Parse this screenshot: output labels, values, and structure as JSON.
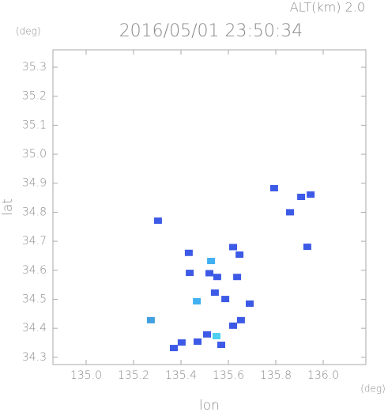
{
  "chart_data": {
    "type": "scatter",
    "title": "2016/05/01 23:50:34",
    "subtitle": "ALT(km) 2.0",
    "y_unit": "(deg)",
    "x_unit": "(deg)",
    "xlabel": "lon",
    "ylabel": "lat",
    "x": [
      135.303,
      135.793,
      135.907,
      135.947,
      135.86,
      135.933,
      135.433,
      135.527,
      135.62,
      135.647,
      135.437,
      135.553,
      135.637,
      135.543,
      135.587,
      135.467,
      135.69,
      135.273,
      135.653,
      135.62,
      135.55,
      135.47,
      135.403,
      135.37,
      135.51,
      135.57,
      135.52
    ],
    "y": [
      34.771,
      34.883,
      34.853,
      34.861,
      34.8,
      34.681,
      34.66,
      34.632,
      34.68,
      34.654,
      34.591,
      34.577,
      34.577,
      34.523,
      34.501,
      34.493,
      34.485,
      34.428,
      34.428,
      34.409,
      34.373,
      34.354,
      34.351,
      34.332,
      34.379,
      34.343,
      34.59
    ],
    "colors": [
      "#3c5ae6",
      "#3c5ae6",
      "#3c5ae6",
      "#3c5ae6",
      "#3c5ae6",
      "#3c5ae6",
      "#3c5ae6",
      "#40b0f0",
      "#3c5ae6",
      "#3c5ae6",
      "#3c5ae6",
      "#3c5ae6",
      "#3c5ae6",
      "#3c5ae6",
      "#3c5ae6",
      "#40b0f0",
      "#3c5ae6",
      "#40a0e0",
      "#3c5ae6",
      "#3c5ae6",
      "#50d0f0",
      "#3c5ae6",
      "#3c5ae6",
      "#3c5ae6",
      "#3c5ae6",
      "#3c5ae6",
      "#3c5ae6"
    ],
    "xlim": [
      134.86,
      136.18
    ],
    "ylim": [
      34.275,
      35.36
    ],
    "xticks": [
      {
        "value": 135.0,
        "label": "135.0"
      },
      135.2,
      135.4,
      135.6,
      135.8,
      {
        "value": 136.0,
        "label": "136.0"
      }
    ],
    "yticks": [
      34.3,
      34.4,
      34.5,
      34.6,
      34.7,
      34.8,
      34.9,
      {
        "value": 35.0,
        "label": "35.0"
      },
      35.1,
      35.2,
      35.3
    ],
    "grid": false
  }
}
